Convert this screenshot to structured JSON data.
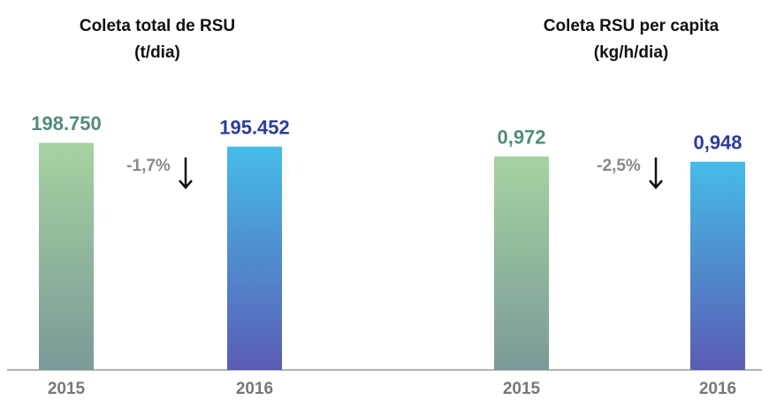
{
  "chart_data": [
    {
      "type": "bar",
      "title": "Coleta total de RSU",
      "subtitle": "(t/dia)",
      "categories": [
        "2015",
        "2016"
      ],
      "values": [
        198750,
        195452
      ],
      "value_labels": [
        "198.750",
        "195.452"
      ],
      "colors": [
        [
          "#a6d2a0",
          "#7a9a98"
        ],
        [
          "#45bce8",
          "#5a5cb4"
        ]
      ],
      "label_colors": [
        "#4f8c7c",
        "#2c3c9c"
      ],
      "ylim": [
        0,
        220000
      ],
      "annotation": "-1,7%"
    },
    {
      "type": "bar",
      "title": "Coleta RSU per capita",
      "subtitle": "(kg/h/dia)",
      "categories": [
        "2015",
        "2016"
      ],
      "values": [
        0.972,
        0.948
      ],
      "value_labels": [
        "0,972",
        "0,948"
      ],
      "colors": [
        [
          "#a6d2a0",
          "#7a9a98"
        ],
        [
          "#45bce8",
          "#5a5cb4"
        ]
      ],
      "label_colors": [
        "#4f8c7c",
        "#2c3c9c"
      ],
      "ylim": [
        0,
        1.1
      ],
      "annotation": "-2,5%"
    }
  ]
}
